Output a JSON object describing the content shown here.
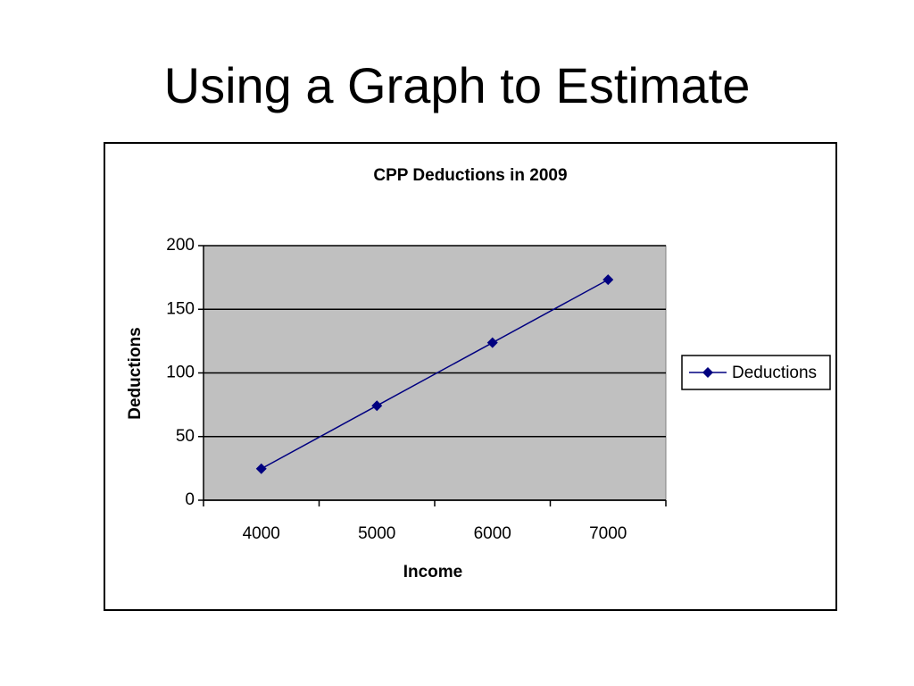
{
  "title": "Using a Graph to Estimate",
  "chart_data": {
    "type": "line",
    "title": "CPP Deductions in 2009",
    "x_label": "Income",
    "y_label": "Deductions",
    "categories": [
      "4000",
      "5000",
      "6000",
      "7000"
    ],
    "series": [
      {
        "name": "Deductions",
        "color": "#000080",
        "values": [
          24.75,
          74.25,
          123.75,
          173.25
        ]
      }
    ],
    "ylim": [
      0,
      200
    ],
    "yticks": [
      0,
      50,
      100,
      150,
      200
    ],
    "grid": true,
    "plot_background": "#c0c0c0",
    "legend": "right"
  }
}
